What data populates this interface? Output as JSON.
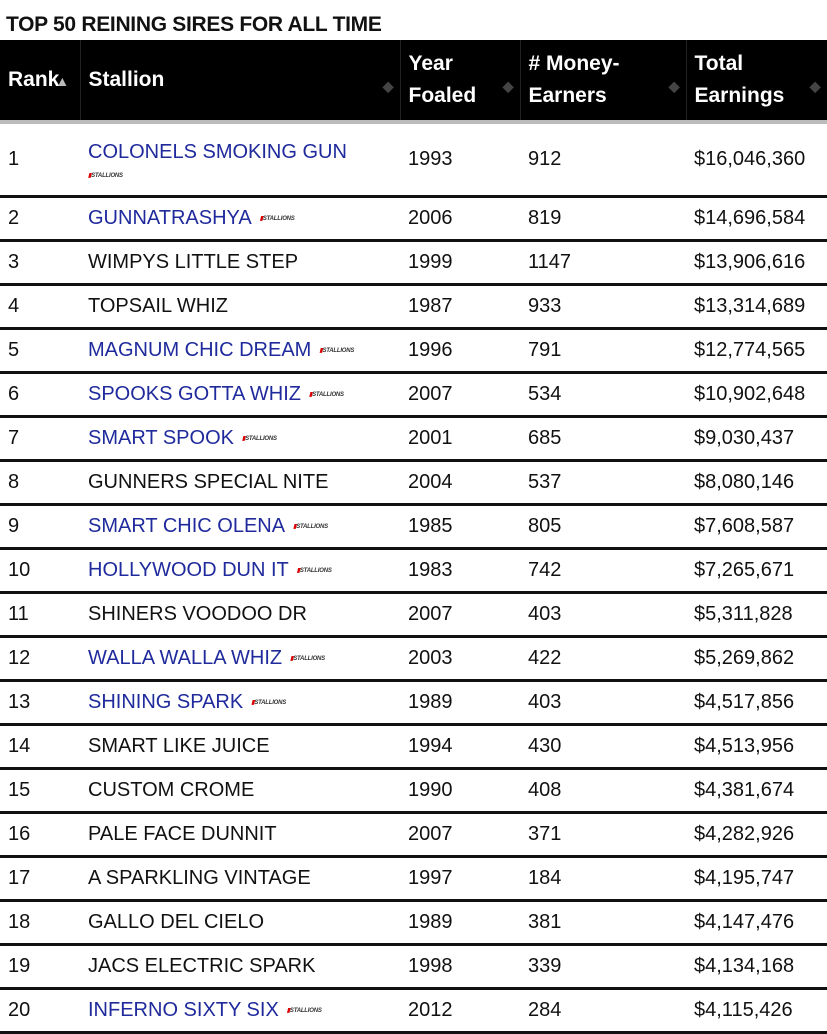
{
  "title": "TOP 50 REINING SIRES FOR ALL TIME",
  "columns": {
    "rank": "Rank",
    "stallion": "Stallion",
    "year1": "Year",
    "year2": "Foaled",
    "money1": "# Money-",
    "money2": "Earners",
    "total1": "Total",
    "total2": "Earnings"
  },
  "badge_text": "STALLIONS",
  "colors": {
    "link": "#1f2a9c",
    "header_bg": "#000000"
  },
  "rows": [
    {
      "rank": "1",
      "name": "COLONELS SMOKING GUN",
      "linked": true,
      "year": "1993",
      "earners": "912",
      "total": "$16,046,360"
    },
    {
      "rank": "2",
      "name": "GUNNATRASHYA",
      "linked": true,
      "year": "2006",
      "earners": "819",
      "total": "$14,696,584"
    },
    {
      "rank": "3",
      "name": "WIMPYS LITTLE STEP",
      "linked": false,
      "year": "1999",
      "earners": "1147",
      "total": "$13,906,616"
    },
    {
      "rank": "4",
      "name": "TOPSAIL WHIZ",
      "linked": false,
      "year": "1987",
      "earners": "933",
      "total": "$13,314,689"
    },
    {
      "rank": "5",
      "name": "MAGNUM CHIC DREAM",
      "linked": true,
      "year": "1996",
      "earners": "791",
      "total": "$12,774,565"
    },
    {
      "rank": "6",
      "name": "SPOOKS GOTTA WHIZ",
      "linked": true,
      "year": "2007",
      "earners": "534",
      "total": "$10,902,648"
    },
    {
      "rank": "7",
      "name": "SMART SPOOK",
      "linked": true,
      "year": "2001",
      "earners": "685",
      "total": "$9,030,437"
    },
    {
      "rank": "8",
      "name": "GUNNERS SPECIAL NITE",
      "linked": false,
      "year": "2004",
      "earners": "537",
      "total": "$8,080,146"
    },
    {
      "rank": "9",
      "name": "SMART CHIC OLENA",
      "linked": true,
      "year": "1985",
      "earners": "805",
      "total": "$7,608,587"
    },
    {
      "rank": "10",
      "name": "HOLLYWOOD DUN IT",
      "linked": true,
      "year": "1983",
      "earners": "742",
      "total": "$7,265,671"
    },
    {
      "rank": "11",
      "name": "SHINERS VOODOO DR",
      "linked": false,
      "year": "2007",
      "earners": "403",
      "total": "$5,311,828"
    },
    {
      "rank": "12",
      "name": "WALLA WALLA WHIZ",
      "linked": true,
      "year": "2003",
      "earners": "422",
      "total": "$5,269,862"
    },
    {
      "rank": "13",
      "name": "SHINING SPARK",
      "linked": true,
      "year": "1989",
      "earners": "403",
      "total": "$4,517,856"
    },
    {
      "rank": "14",
      "name": "SMART LIKE JUICE",
      "linked": false,
      "year": "1994",
      "earners": "430",
      "total": "$4,513,956"
    },
    {
      "rank": "15",
      "name": "CUSTOM CROME",
      "linked": false,
      "year": "1990",
      "earners": "408",
      "total": "$4,381,674"
    },
    {
      "rank": "16",
      "name": "PALE FACE DUNNIT",
      "linked": false,
      "year": "2007",
      "earners": "371",
      "total": "$4,282,926"
    },
    {
      "rank": "17",
      "name": "A SPARKLING VINTAGE",
      "linked": false,
      "year": "1997",
      "earners": "184",
      "total": "$4,195,747"
    },
    {
      "rank": "18",
      "name": "GALLO DEL CIELO",
      "linked": false,
      "year": "1989",
      "earners": "381",
      "total": "$4,147,476"
    },
    {
      "rank": "19",
      "name": "JACS ELECTRIC SPARK",
      "linked": false,
      "year": "1998",
      "earners": "339",
      "total": "$4,134,168"
    },
    {
      "rank": "20",
      "name": "INFERNO SIXTY SIX",
      "linked": true,
      "year": "2012",
      "earners": "284",
      "total": "$4,115,426"
    }
  ]
}
